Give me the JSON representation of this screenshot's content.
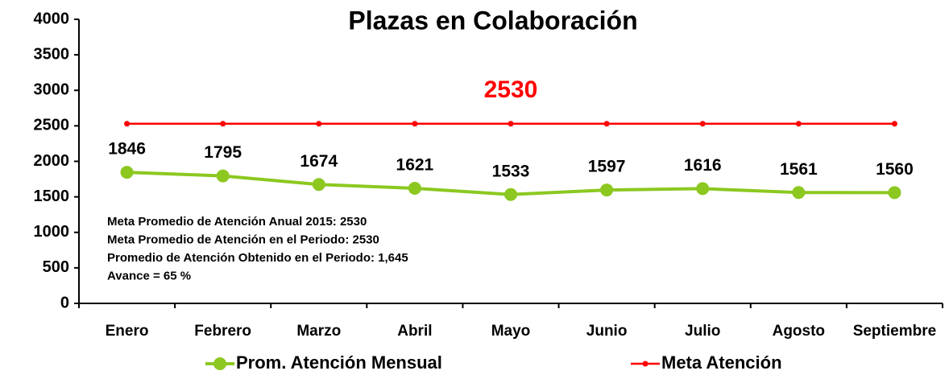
{
  "chart_data": {
    "type": "line",
    "title": "Plazas en Colaboración",
    "categories": [
      "Enero",
      "Febrero",
      "Marzo",
      "Abril",
      "Mayo",
      "Junio",
      "Julio",
      "Agosto",
      "Septiembre"
    ],
    "series": [
      {
        "name": "Prom. Atención Mensual",
        "color": "#8cc820",
        "values": [
          1846,
          1795,
          1674,
          1621,
          1533,
          1597,
          1616,
          1561,
          1560
        ],
        "data_labels": true
      },
      {
        "name": "Meta Atención",
        "color": "#ff0000",
        "values": [
          2530,
          2530,
          2530,
          2530,
          2530,
          2530,
          2530,
          2530,
          2530
        ],
        "data_labels": false
      }
    ],
    "ylim": [
      0,
      4000
    ],
    "yticks": [
      0,
      500,
      1000,
      1500,
      2000,
      2500,
      3000,
      3500,
      4000
    ],
    "grid": false,
    "goal_label": "2530",
    "notes": [
      "Meta Promedio de Atención Anual 2015: 2530",
      "Meta Promedio de Atención en el Periodo: 2530",
      "Promedio de Atención Obtenido en el Periodo: 1,645",
      "Avance = 65 %"
    ],
    "legend": "bottom"
  }
}
